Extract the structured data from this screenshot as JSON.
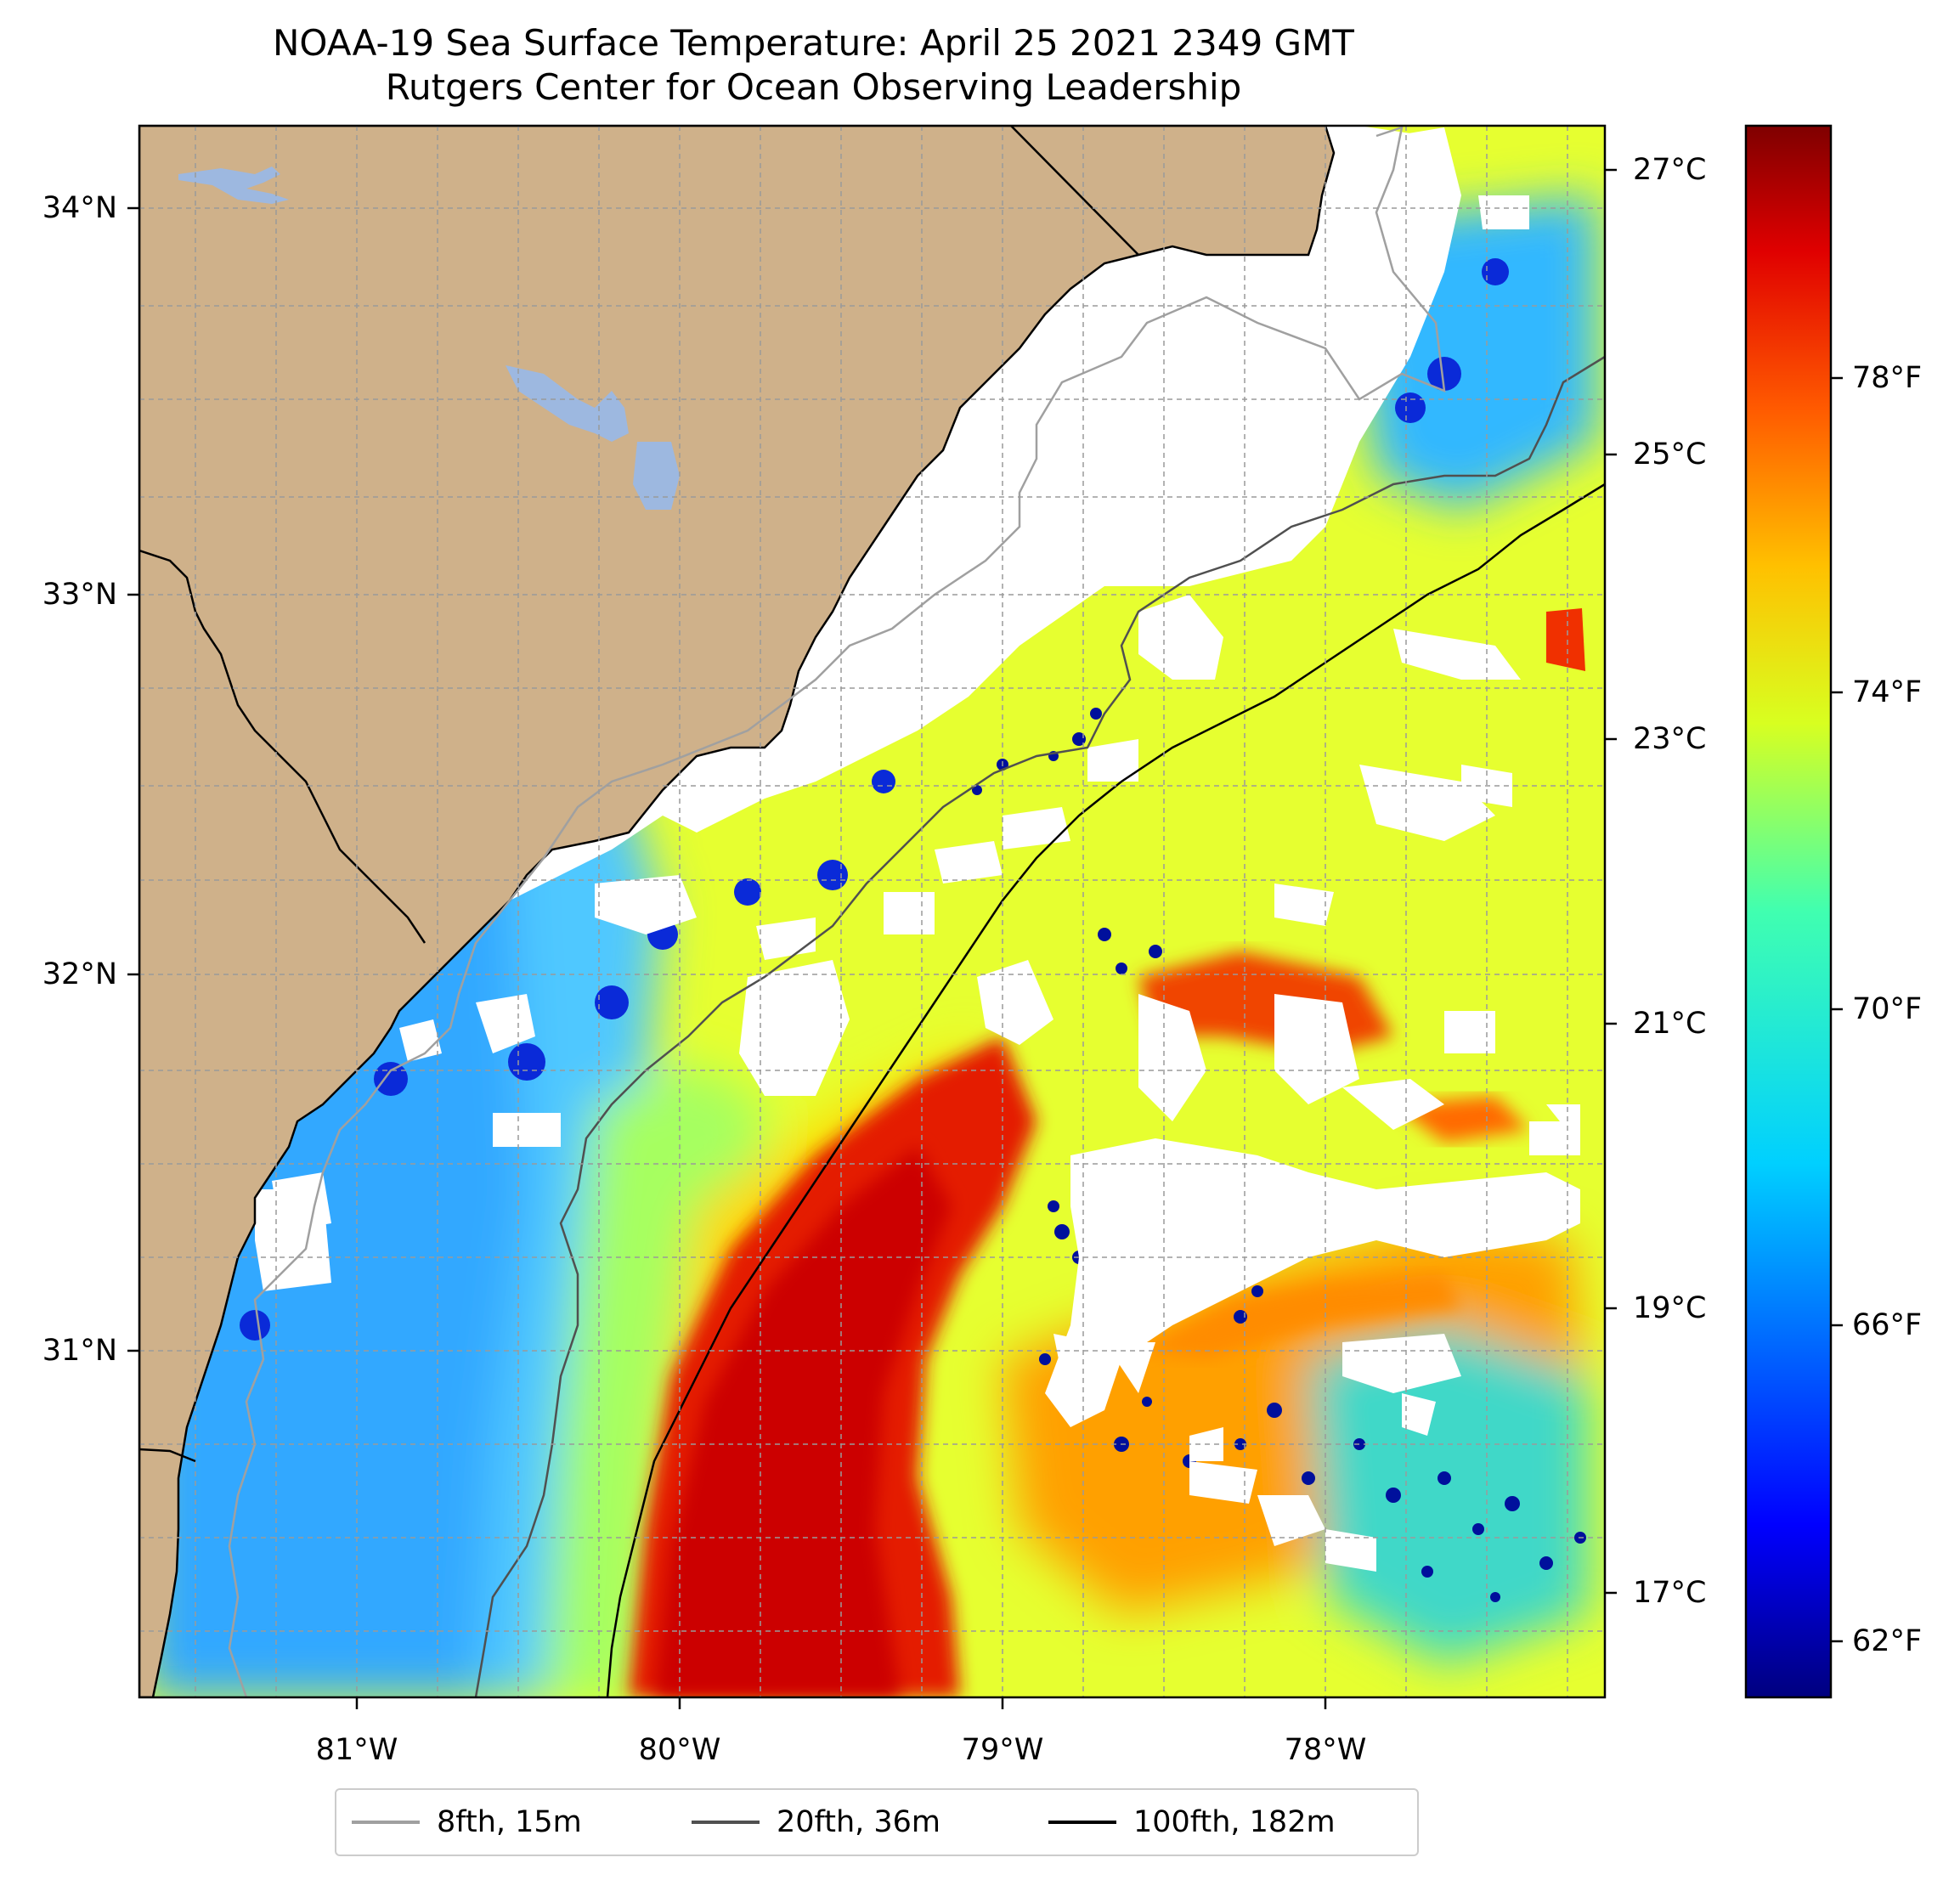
{
  "title": {
    "line1": "NOAA-19 Sea Surface Temperature: April 25 2021 2349 GMT",
    "line2": "Rutgers Center for Ocean Observing Leadership"
  },
  "axes": {
    "lat_labels": [
      "34°N",
      "33°N",
      "32°N",
      "31°N"
    ],
    "lon_labels": [
      "81°W",
      "80°W",
      "79°W",
      "78°W"
    ],
    "lon_range": [
      -81.67,
      -77.16
    ],
    "lat_range": [
      30.07,
      34.22
    ],
    "gridlines": true
  },
  "colorbar": {
    "celsius_labels": [
      "27°C",
      "25°C",
      "23°C",
      "21°C",
      "19°C",
      "17°C"
    ],
    "fahrenheit_labels": [
      "78°F",
      "74°F",
      "70°F",
      "66°F",
      "62°F"
    ],
    "colormap": "jet",
    "range_f": [
      61,
      81
    ]
  },
  "legend": {
    "items": [
      {
        "label": "8fth, 15m",
        "color": "#a0a0a0"
      },
      {
        "label": "20fth, 36m",
        "color": "#505050"
      },
      {
        "label": "100fth, 182m",
        "color": "#000000"
      }
    ],
    "placement": "bottom-center"
  },
  "colors": {
    "land": "#cfb18a",
    "lake": "#9db8e0",
    "cloud": "#ffffff"
  }
}
